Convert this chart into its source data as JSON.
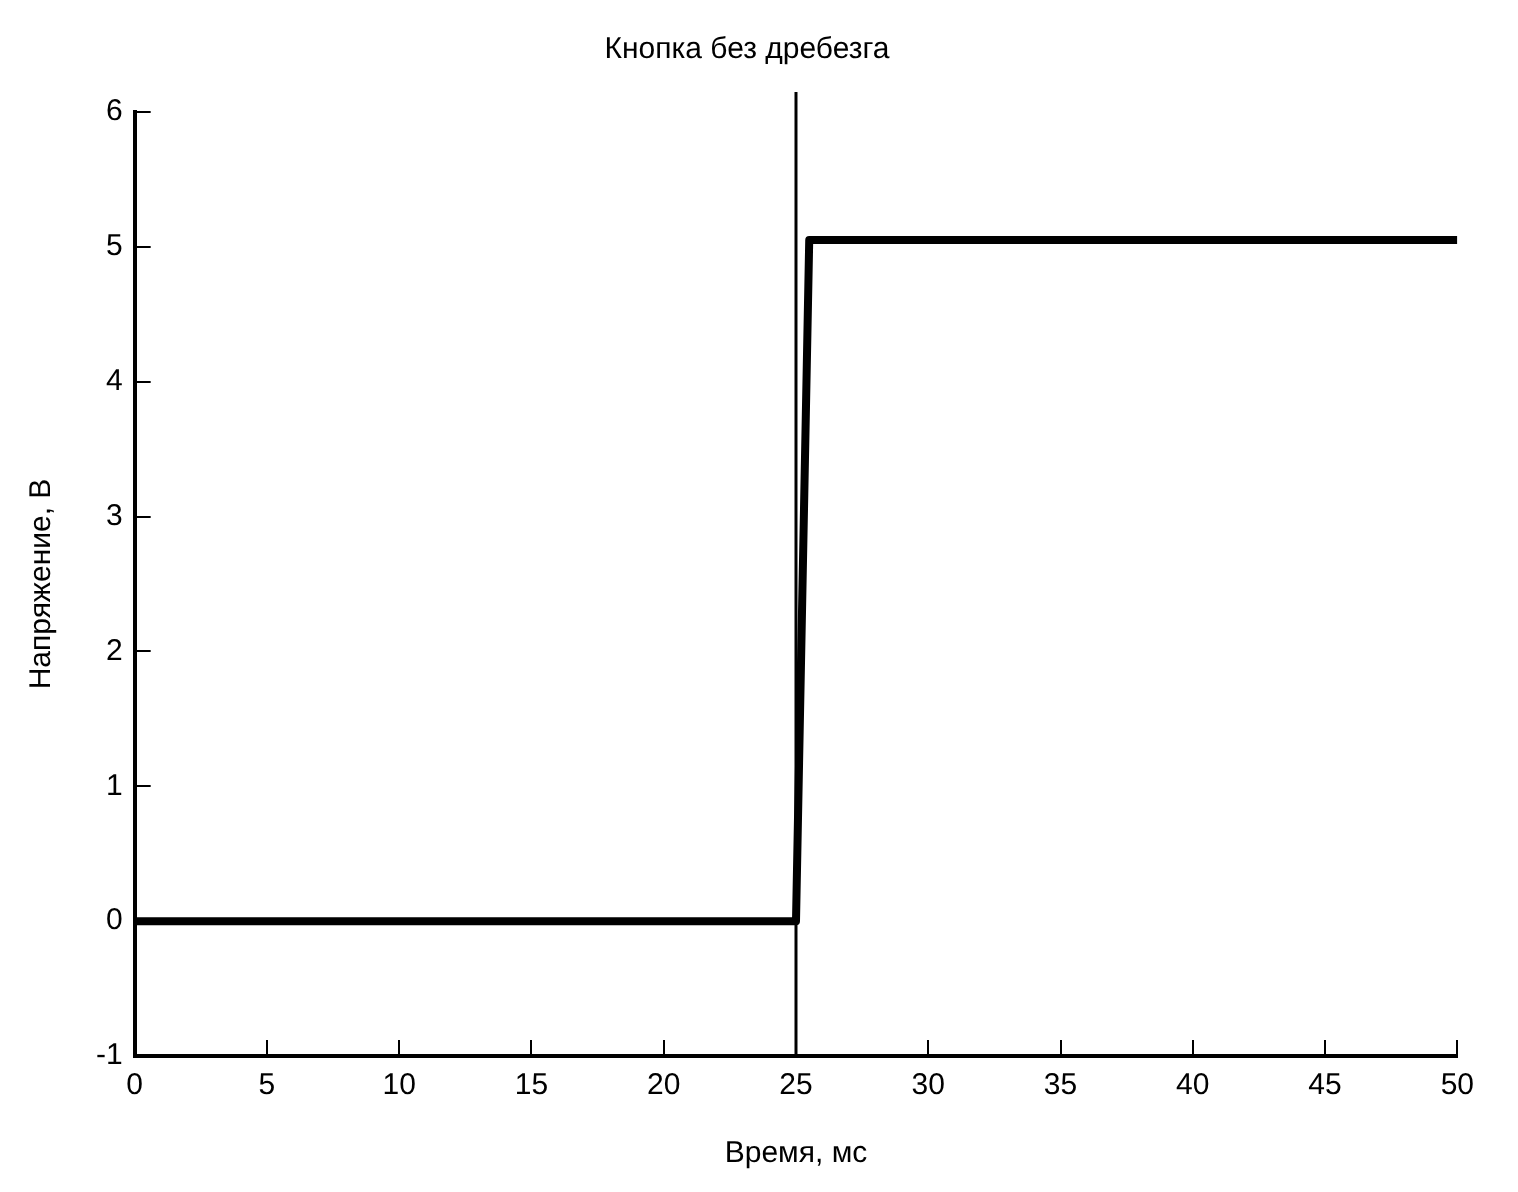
{
  "chart_data": {
    "type": "line",
    "title": "Кнопка без дребезга",
    "xlabel": "Время, мс",
    "ylabel": "Напряжение, В",
    "x": [
      0,
      25,
      25.5,
      50
    ],
    "series": [
      {
        "color": "#000000",
        "values": [
          0,
          0,
          5.05,
          5.05
        ]
      }
    ],
    "xlim": [
      0,
      50
    ],
    "xticks": [
      0,
      5,
      10,
      15,
      20,
      25,
      30,
      35,
      40,
      45,
      50
    ],
    "ylim": [
      -1,
      6
    ],
    "yticks": [
      -1,
      0,
      1,
      2,
      3,
      4,
      5,
      6
    ],
    "ref_lines": [
      {
        "axis": "x",
        "value": 25,
        "color": "#000000"
      }
    ],
    "grid": false,
    "legend": false,
    "marker": "none",
    "line_style": "solid"
  }
}
